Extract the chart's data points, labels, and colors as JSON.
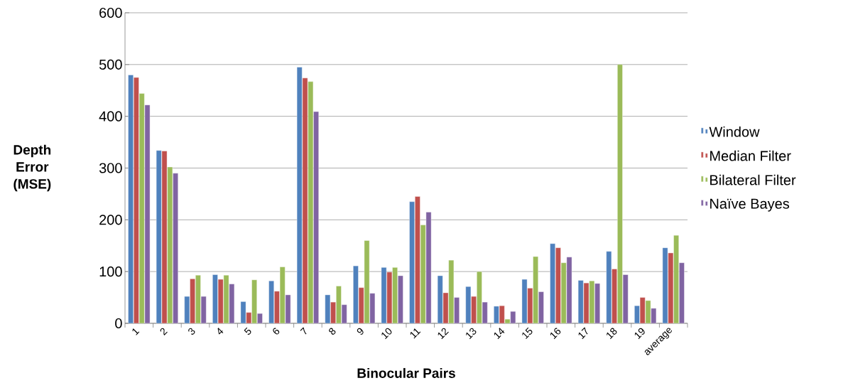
{
  "chart_data": {
    "type": "bar",
    "xlabel": "Binocular Pairs",
    "ylabel": "Depth Error (MSE)",
    "categories": [
      "1",
      "2",
      "3",
      "4",
      "5",
      "6",
      "7",
      "8",
      "9",
      "10",
      "11",
      "12",
      "13",
      "14",
      "15",
      "16",
      "17",
      "18",
      "19",
      "average"
    ],
    "series": [
      {
        "name": "Window",
        "color": "#4f81bd",
        "values": [
          480,
          334,
          52,
          94,
          42,
          82,
          495,
          55,
          111,
          108,
          235,
          92,
          71,
          33,
          85,
          154,
          83,
          139,
          34,
          146
        ]
      },
      {
        "name": "Median Filter",
        "color": "#c0504d",
        "values": [
          475,
          333,
          86,
          85,
          21,
          62,
          474,
          41,
          69,
          99,
          245,
          59,
          52,
          34,
          68,
          146,
          78,
          105,
          50,
          136
        ]
      },
      {
        "name": "Bilateral Filter",
        "color": "#9bbb59",
        "values": [
          444,
          302,
          93,
          93,
          84,
          109,
          467,
          72,
          160,
          108,
          190,
          122,
          100,
          8,
          129,
          117,
          82,
          500,
          44,
          170
        ]
      },
      {
        "name": "Naïve Bayes",
        "color": "#8064a2",
        "values": [
          422,
          290,
          52,
          76,
          19,
          55,
          409,
          36,
          58,
          92,
          215,
          50,
          41,
          23,
          61,
          128,
          77,
          94,
          29,
          117
        ]
      }
    ],
    "ylim": [
      0,
      600
    ],
    "yticks": [
      0,
      100,
      200,
      300,
      400,
      500,
      600
    ],
    "grid": "y",
    "legend": "right"
  }
}
